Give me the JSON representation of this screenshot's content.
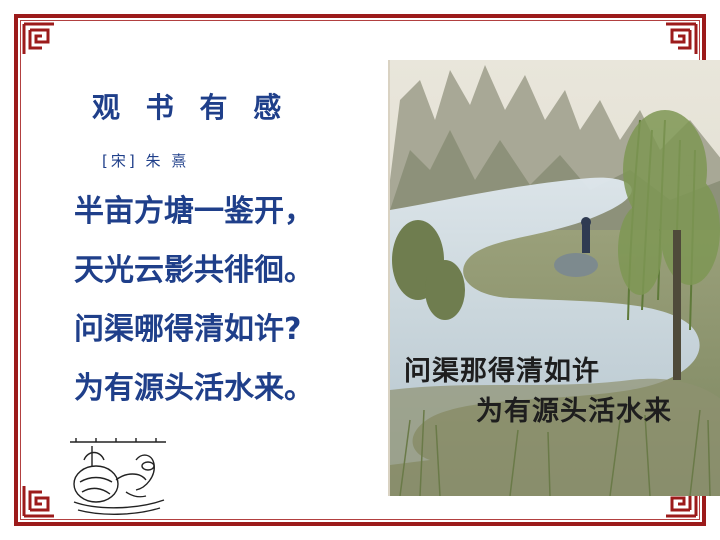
{
  "poem": {
    "title": "观 书 有 感",
    "author": "[宋]  朱  熹",
    "lines": [
      "半亩方塘一鉴开，",
      "天光云影共徘徊。",
      "问渠哪得清如许?",
      "为有源头活水来。"
    ]
  },
  "painting": {
    "caption_line1": "问渠那得清如许",
    "caption_line2": "为有源头活水来"
  },
  "colors": {
    "frame": "#9c1b1b",
    "poem_text": "#1f3f8a"
  }
}
